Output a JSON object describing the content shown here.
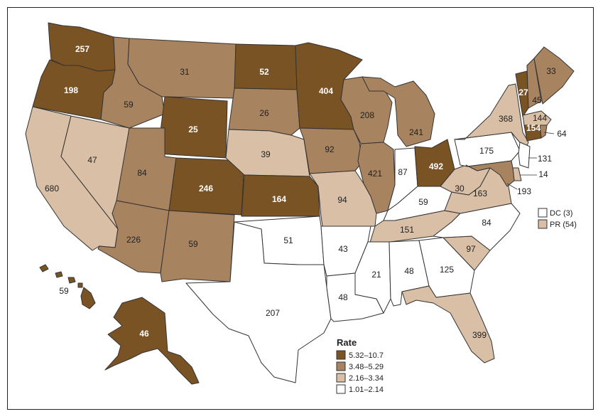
{
  "colors": {
    "class1": "#7a5324",
    "class2": "#a8835f",
    "class3": "#d8bfa6",
    "class4": "#ffffff",
    "border": "#333333"
  },
  "legend": {
    "title": "Rate",
    "items": [
      {
        "label": "5.32–10.7",
        "class": "class1"
      },
      {
        "label": "3.48–5.29",
        "class": "class2"
      },
      {
        "label": "2.16–3.34",
        "class": "class3"
      },
      {
        "label": "1.01–2.14",
        "class": "class4"
      }
    ]
  },
  "territories": [
    {
      "label": "DC (3)",
      "class": "class4"
    },
    {
      "label": "PR (54)",
      "class": "class3"
    }
  ],
  "states": [
    {
      "abbr": "WA",
      "value": "257",
      "class": "class1"
    },
    {
      "abbr": "OR",
      "value": "198",
      "class": "class1"
    },
    {
      "abbr": "CA",
      "value": "680",
      "class": "class3"
    },
    {
      "abbr": "NV",
      "value": "47",
      "class": "class3"
    },
    {
      "abbr": "ID",
      "value": "59",
      "class": "class2"
    },
    {
      "abbr": "MT",
      "value": "31",
      "class": "class2"
    },
    {
      "abbr": "WY",
      "value": "25",
      "class": "class1"
    },
    {
      "abbr": "UT",
      "value": "84",
      "class": "class2"
    },
    {
      "abbr": "AZ",
      "value": "226",
      "class": "class2"
    },
    {
      "abbr": "CO",
      "value": "246",
      "class": "class1"
    },
    {
      "abbr": "NM",
      "value": "59",
      "class": "class2"
    },
    {
      "abbr": "ND",
      "value": "52",
      "class": "class1"
    },
    {
      "abbr": "SD",
      "value": "26",
      "class": "class2"
    },
    {
      "abbr": "NE",
      "value": "39",
      "class": "class3"
    },
    {
      "abbr": "KS",
      "value": "164",
      "class": "class1"
    },
    {
      "abbr": "OK",
      "value": "51",
      "class": "class4"
    },
    {
      "abbr": "TX",
      "value": "207",
      "class": "class4"
    },
    {
      "abbr": "MN",
      "value": "404",
      "class": "class1"
    },
    {
      "abbr": "IA",
      "value": "92",
      "class": "class2"
    },
    {
      "abbr": "MO",
      "value": "94",
      "class": "class3"
    },
    {
      "abbr": "AR",
      "value": "43",
      "class": "class4"
    },
    {
      "abbr": "LA",
      "value": "48",
      "class": "class4"
    },
    {
      "abbr": "WI",
      "value": "208",
      "class": "class2"
    },
    {
      "abbr": "IL",
      "value": "421",
      "class": "class2"
    },
    {
      "abbr": "MI",
      "value": "241",
      "class": "class2"
    },
    {
      "abbr": "IN",
      "value": "87",
      "class": "class4"
    },
    {
      "abbr": "OH",
      "value": "492",
      "class": "class1"
    },
    {
      "abbr": "KY",
      "value": "59",
      "class": "class4"
    },
    {
      "abbr": "TN",
      "value": "151",
      "class": "class3"
    },
    {
      "abbr": "MS",
      "value": "21",
      "class": "class4"
    },
    {
      "abbr": "AL",
      "value": "48",
      "class": "class4"
    },
    {
      "abbr": "GA",
      "value": "125",
      "class": "class4"
    },
    {
      "abbr": "FL",
      "value": "399",
      "class": "class3"
    },
    {
      "abbr": "SC",
      "value": "97",
      "class": "class3"
    },
    {
      "abbr": "NC",
      "value": "84",
      "class": "class4"
    },
    {
      "abbr": "VA",
      "value": "163",
      "class": "class3"
    },
    {
      "abbr": "WV",
      "value": "30",
      "class": "class3"
    },
    {
      "abbr": "PA",
      "value": "175",
      "class": "class4"
    },
    {
      "abbr": "NY",
      "value": "368",
      "class": "class3"
    },
    {
      "abbr": "VT",
      "value": "27",
      "class": "class1"
    },
    {
      "abbr": "NH",
      "value": "45",
      "class": "class2"
    },
    {
      "abbr": "ME",
      "value": "33",
      "class": "class2"
    },
    {
      "abbr": "MA",
      "value": "144",
      "class": "class3"
    },
    {
      "abbr": "CT",
      "value": "154",
      "class": "class1"
    },
    {
      "abbr": "RI",
      "value": "64",
      "class": "class2"
    },
    {
      "abbr": "NJ",
      "value": "131",
      "class": "class4"
    },
    {
      "abbr": "DE",
      "value": "14",
      "class": "class3"
    },
    {
      "abbr": "MD",
      "value": "193",
      "class": "class2"
    },
    {
      "abbr": "AK",
      "value": "46",
      "class": "class1"
    },
    {
      "abbr": "HI",
      "value": "59",
      "class": "class1"
    }
  ]
}
